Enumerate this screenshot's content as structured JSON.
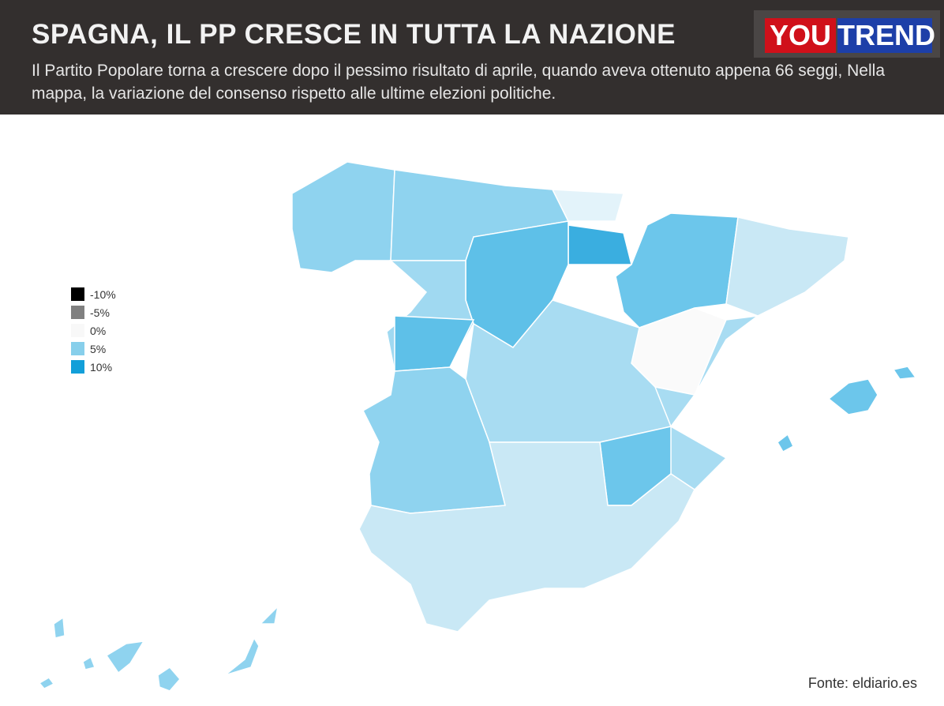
{
  "header": {
    "title": "SPAGNA, IL PP CRESCE IN TUTTA LA NAZIONE",
    "subtitle": "Il Partito Popolare torna a crescere dopo il pessimo risultato di aprile, quando aveva ottenuto appena 66 seggi, Nella mappa, la variazione del consenso rispetto alle ultime elezioni politiche.",
    "logo": [
      "YOU",
      "TREND"
    ]
  },
  "legend": {
    "items": [
      {
        "label": "-10%",
        "color": "#000000"
      },
      {
        "label": "-5%",
        "color": "#808080"
      },
      {
        "label": "0%",
        "color": "#f8f8f8"
      },
      {
        "label": "5%",
        "color": "#87cfeb"
      },
      {
        "label": "10%",
        "color": "#129fd9"
      }
    ]
  },
  "source": "Fonte: eldiario.es"
}
